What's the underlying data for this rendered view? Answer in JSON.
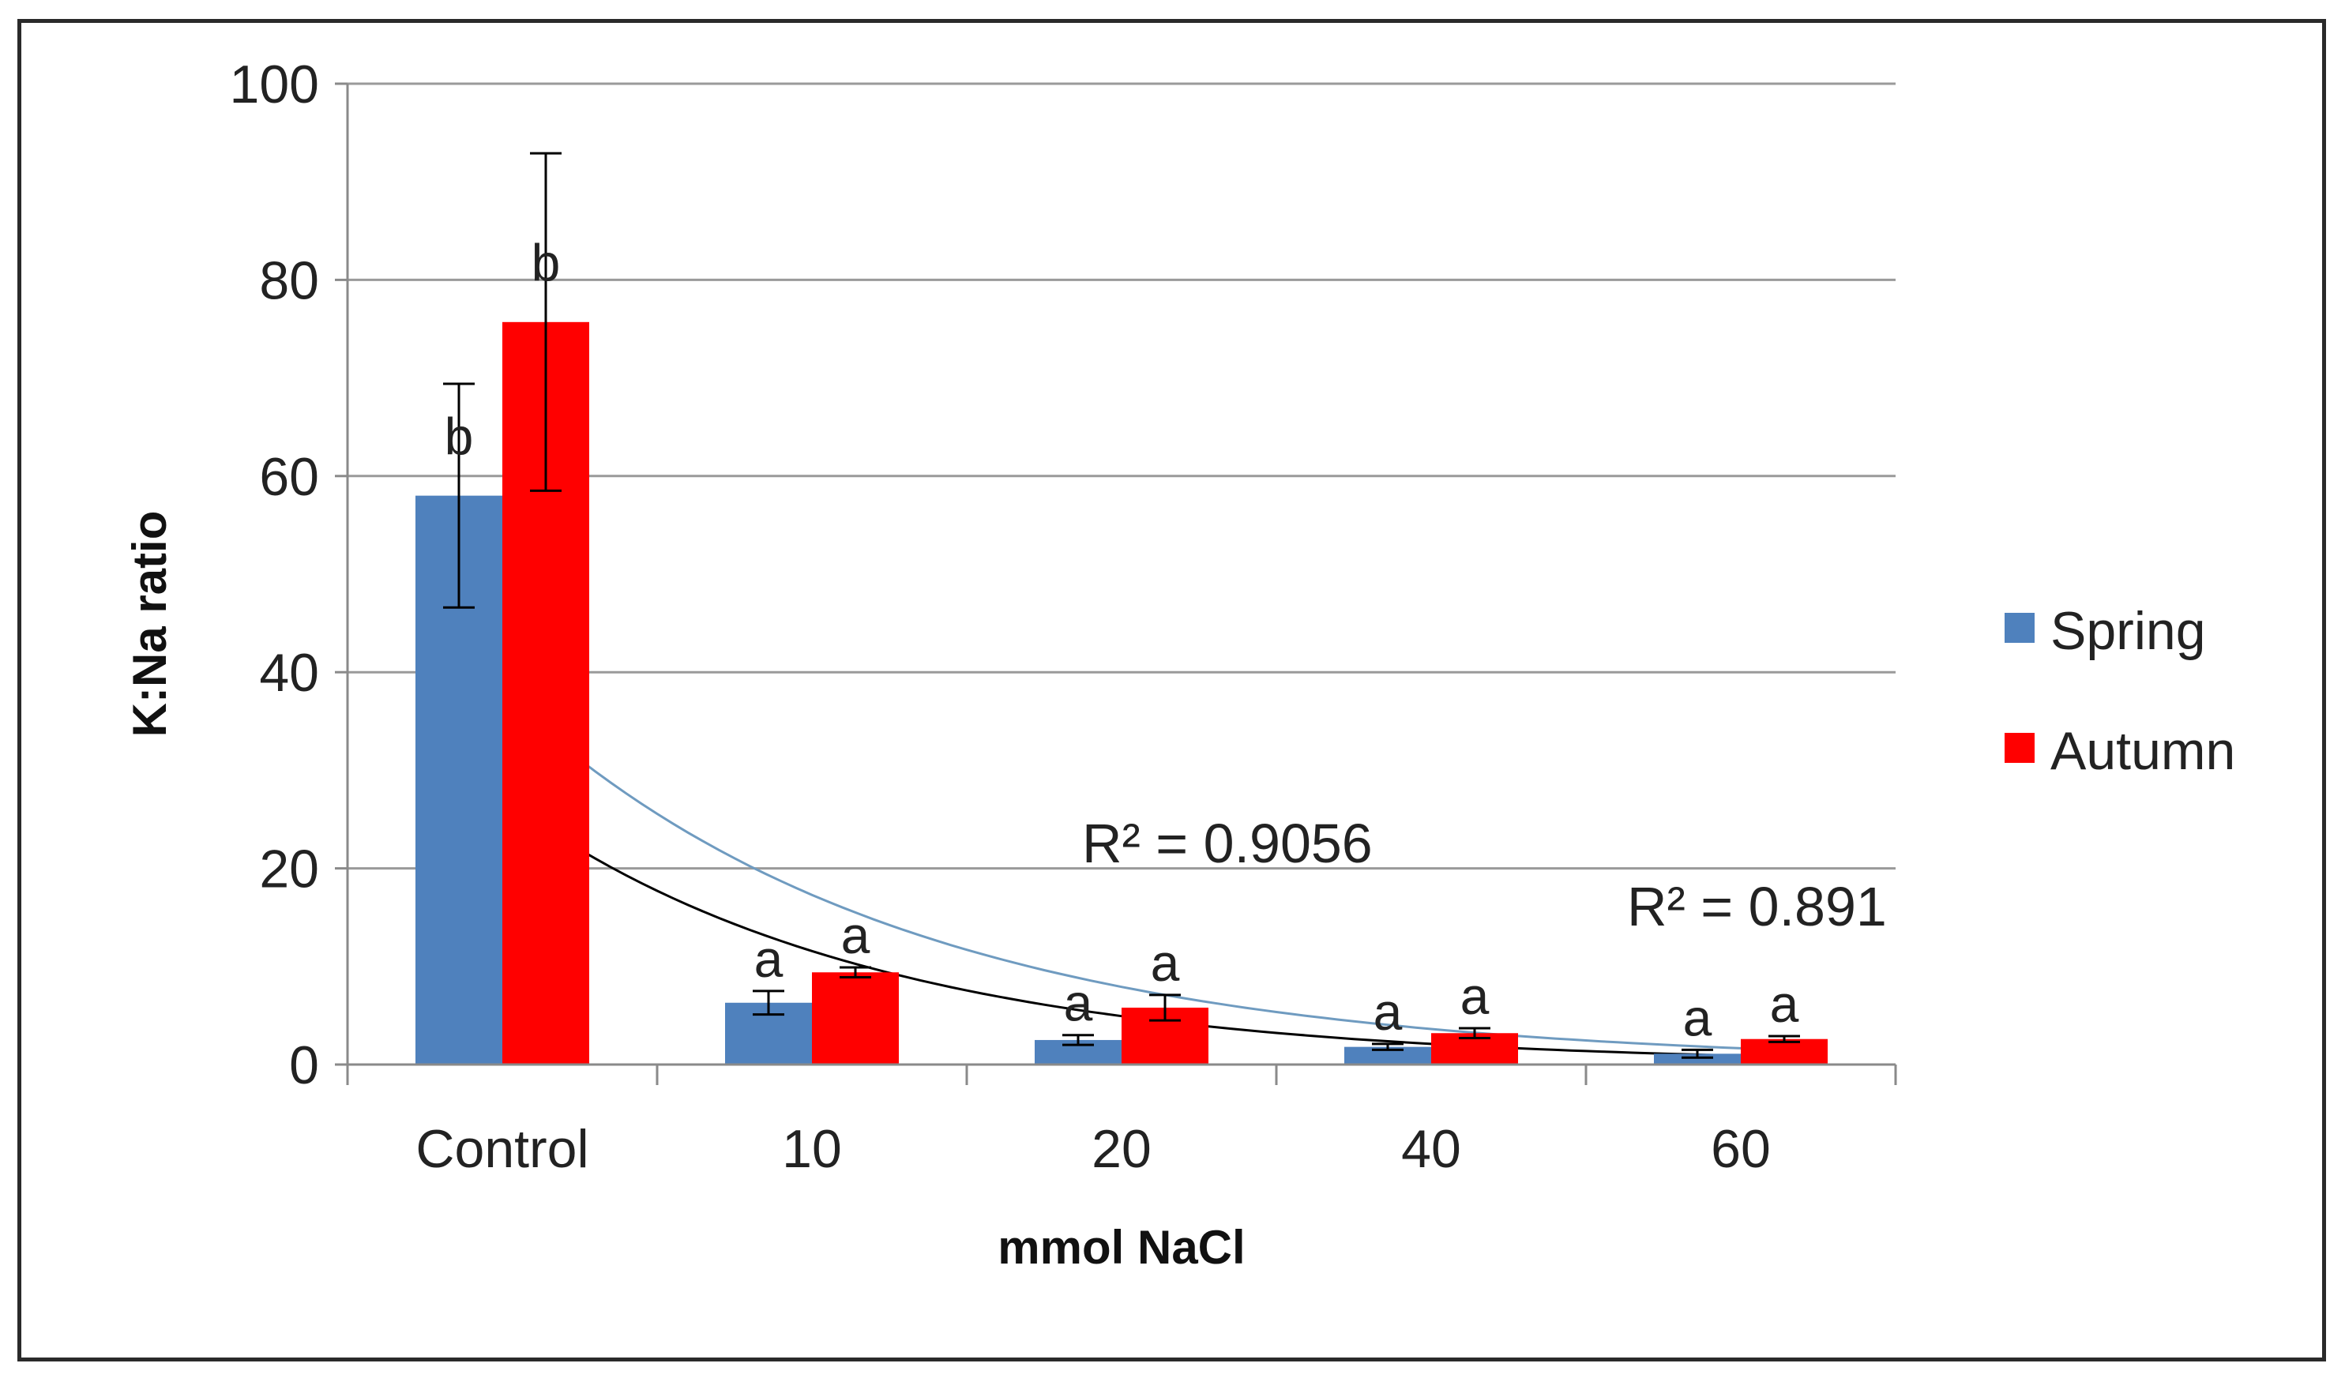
{
  "chart_data": {
    "type": "bar",
    "title": "",
    "xlabel": "mmol NaCl",
    "ylabel": "K:Na ratio",
    "ylim": [
      0,
      100
    ],
    "yticks": [
      "0",
      "20",
      "40",
      "60",
      "80",
      "100"
    ],
    "categories": [
      "Control",
      "10",
      "20",
      "40",
      "60"
    ],
    "legend_position": "right",
    "series": [
      {
        "name": "Spring",
        "color": "#4f81bd",
        "values": [
          58,
          6.3,
          2.5,
          1.8,
          1.1
        ],
        "errors": [
          11.4,
          1.2,
          0.5,
          0.3,
          0.4
        ],
        "significance": [
          "b",
          "a",
          "a",
          "a",
          "a"
        ]
      },
      {
        "name": "Autumn",
        "color": "#ff0000",
        "values": [
          75.7,
          9.4,
          5.8,
          3.2,
          2.6
        ],
        "errors": [
          17.2,
          0.5,
          1.3,
          0.5,
          0.3
        ],
        "significance": [
          "b",
          "a",
          "a",
          "a",
          "a"
        ]
      }
    ],
    "trendlines": [
      {
        "series": "Autumn",
        "type": "exponential",
        "color": "#6f9bc0",
        "values": [
          39.5,
          16.5,
          7.8,
          3.6,
          1.7
        ],
        "r2_label": "R² = 0.9056"
      },
      {
        "series": "Spring",
        "type": "exponential",
        "color": "#000000",
        "values": [
          27,
          11.7,
          4.9,
          2.1,
          0.9
        ],
        "r2_label": "R² = 0.891"
      }
    ]
  }
}
